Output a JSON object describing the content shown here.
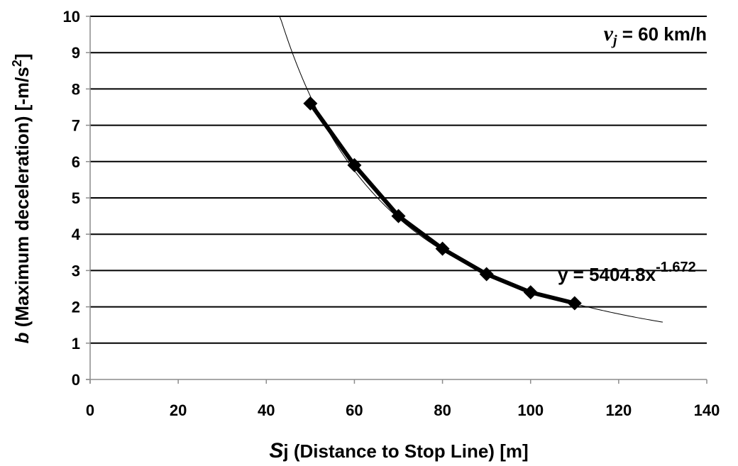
{
  "chart_data": {
    "type": "line",
    "title": "",
    "xlabel": {
      "var": "S",
      "sub": "j",
      "text": " (Distance to Stop Line) [m]"
    },
    "ylabel": {
      "var": "b",
      "text": " (Maximum deceleration) [-m/s",
      "sup": "2",
      "end": "]"
    },
    "xlim": [
      0,
      140
    ],
    "ylim": [
      0,
      10
    ],
    "xticks": [
      0,
      20,
      40,
      60,
      80,
      100,
      120,
      140
    ],
    "yticks": [
      0,
      1,
      2,
      3,
      4,
      5,
      6,
      7,
      8,
      9,
      10
    ],
    "grid": "horizontal",
    "series": [
      {
        "x": [
          50,
          60,
          70,
          80,
          90,
          100,
          110
        ],
        "y": [
          7.6,
          5.9,
          4.5,
          3.6,
          2.9,
          2.4,
          2.1
        ],
        "color": "#000000",
        "marker": "diamond"
      }
    ],
    "trendline": {
      "type": "power",
      "coefficient": 5404.8,
      "exponent": -1.672,
      "x_range": [
        43,
        130
      ],
      "label": {
        "base": "y = 5404.8x",
        "exp": "-1.672"
      }
    },
    "annotation": {
      "var": "v",
      "sub": "j",
      "text": " = 60 km/h"
    }
  }
}
